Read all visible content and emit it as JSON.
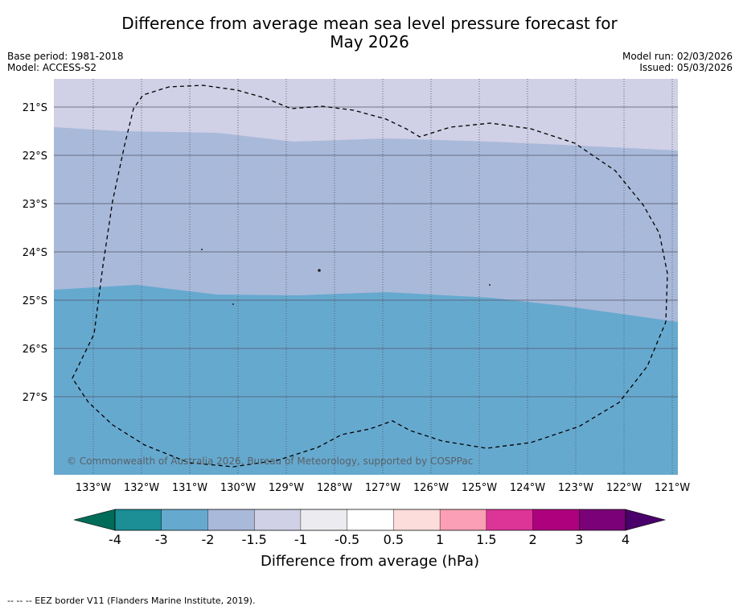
{
  "title_line1": "Difference from average mean sea level pressure forecast for",
  "title_line2": "May 2026",
  "base_period": "Base period: 1981-2018",
  "model": "Model: ACCESS-S2",
  "model_run": "Model run: 02/03/2026",
  "issued": "Issued: 05/03/2026",
  "copyright": "© Commonwealth of Australia 2026, Bureau of Meteorology, supported by COSPPac",
  "footer": "--  --  -- EEZ border V11 (Flanders Marine Institute, 2019).",
  "map": {
    "lon_range": [
      -133.8,
      -120.9
    ],
    "lat_range": [
      -28.6,
      -20.4
    ],
    "lat_ticks": [
      "21°S",
      "22°S",
      "23°S",
      "24°S",
      "25°S",
      "26°S",
      "27°S"
    ],
    "lon_ticks": [
      "133°W",
      "132°W",
      "131°W",
      "130°W",
      "129°W",
      "128°W",
      "127°W",
      "126°W",
      "125°W",
      "124°W",
      "123°W",
      "122°W",
      "121°W"
    ],
    "zones": [
      {
        "range": "-1.5 to -1",
        "color": "#d0d0e6"
      },
      {
        "range": "-2 to -1.5",
        "color": "#a9b9da"
      },
      {
        "range": "-3 to -2",
        "color": "#66a9cf"
      }
    ]
  },
  "colorbar": {
    "title": "Difference from average (hPa)",
    "labels": [
      "-4",
      "-3",
      "-2",
      "-1.5",
      "-1",
      "-0.5",
      "0.5",
      "1",
      "1.5",
      "2",
      "3",
      "4"
    ],
    "colors": [
      "#1b8e96",
      "#66a9cf",
      "#a9b9da",
      "#d0d0e6",
      "#ececf0",
      "#ffffff",
      "#fddcdc",
      "#fa9fb5",
      "#dd3497",
      "#ae017e",
      "#7a0177"
    ],
    "under_color": "#016c59",
    "over_color": "#49006a"
  }
}
